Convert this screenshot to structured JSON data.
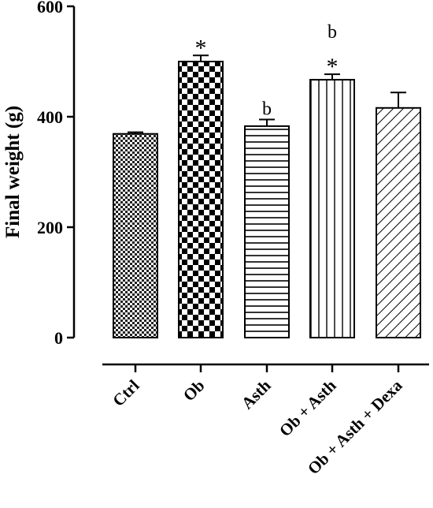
{
  "chart_data": {
    "type": "bar",
    "title": "",
    "xlabel": "",
    "ylabel": "Final weight (g)",
    "ylim": [
      0,
      600
    ],
    "yticks": [
      "0",
      "200",
      "400",
      "600"
    ],
    "categories": [
      "Ctrl",
      "Ob",
      "Asth",
      "Ob + Asth",
      "Ob + Asth + Dexa"
    ],
    "values": [
      369,
      500,
      383,
      467,
      416
    ],
    "errors": [
      3,
      11,
      12,
      10,
      28
    ],
    "patterns": [
      "fine-checker",
      "coarse-checker",
      "horizontal-lines",
      "vertical-lines",
      "diagonal-lines"
    ],
    "annotations": [
      {
        "category": "Ob",
        "text": "*"
      },
      {
        "category": "Asth",
        "text": "b"
      },
      {
        "category": "Ob + Asth",
        "text": "*"
      },
      {
        "category": "Ob + Asth",
        "text": "b"
      }
    ],
    "grid": false,
    "legend": "none"
  }
}
